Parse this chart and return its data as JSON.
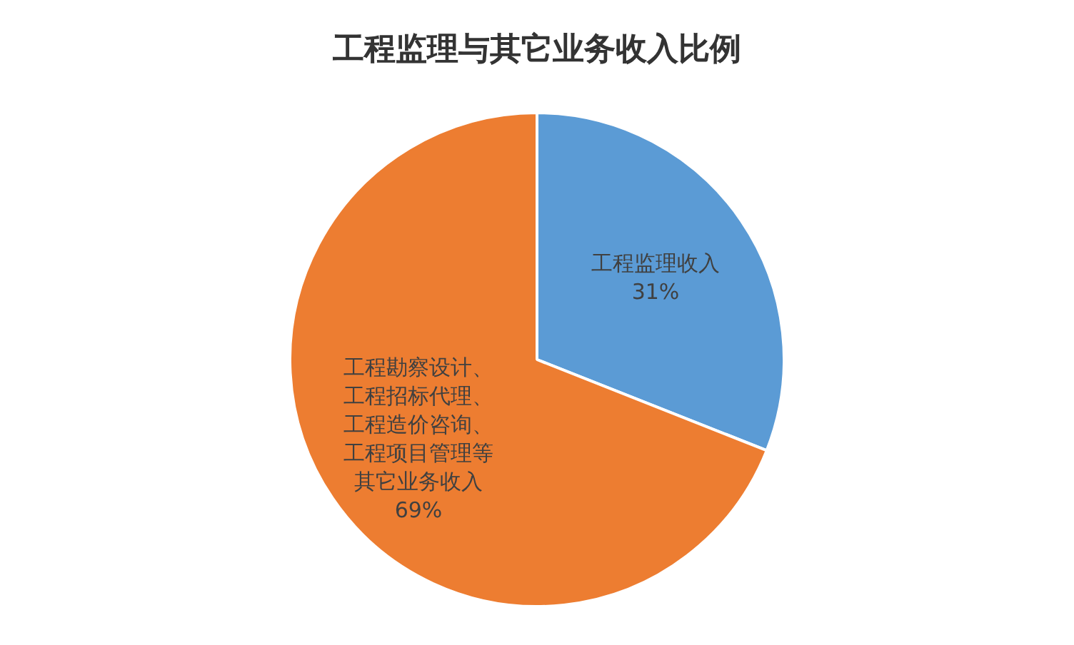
{
  "chart_data": {
    "type": "pie",
    "title": "工程监理与其它业务收入比例",
    "categories": [
      "工程监理收入",
      "工程勘察设计、工程招标代理、工程造价咨询、工程项目管理等其它业务收入"
    ],
    "values": [
      31,
      69
    ],
    "colors": [
      "#5b9bd5",
      "#ed7d31"
    ],
    "value_labels": [
      "31%",
      "69%"
    ],
    "legend": false
  }
}
